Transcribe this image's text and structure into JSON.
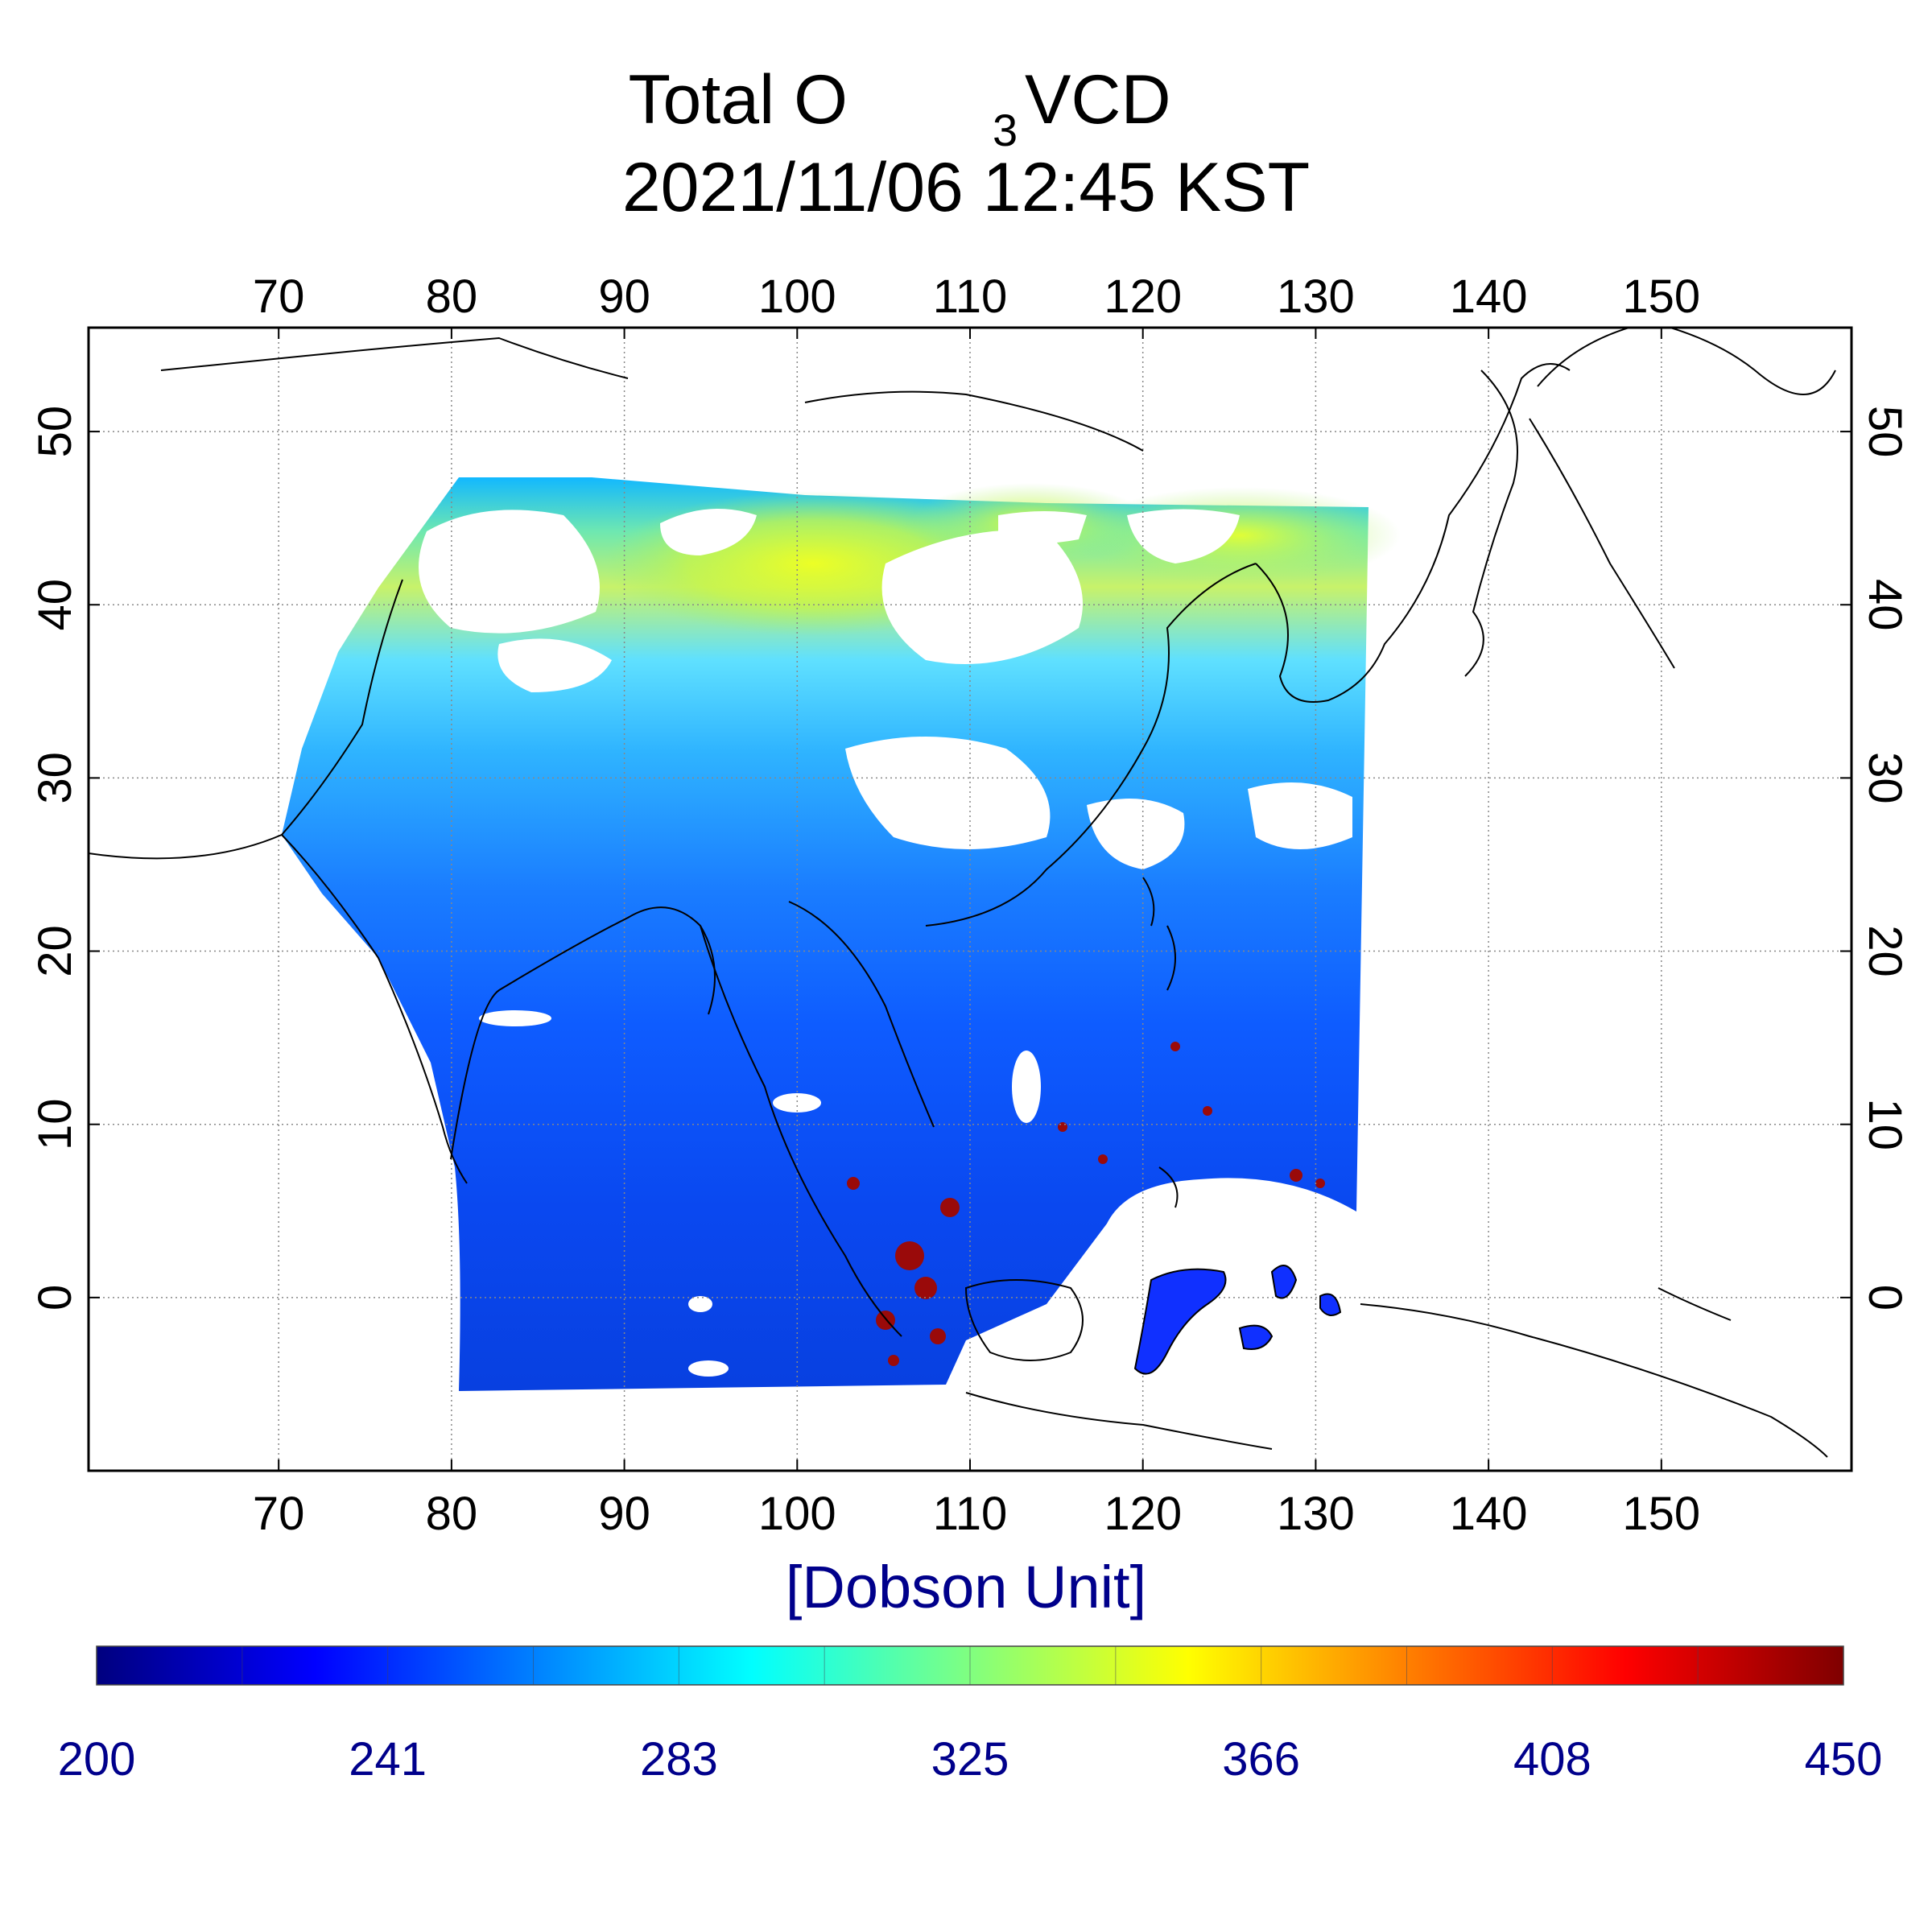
{
  "title": {
    "line1_prefix": "Total O",
    "line1_subscript": "3",
    "line1_suffix": " VCD",
    "line2": "2021/11/06 12:45 KST"
  },
  "map": {
    "lon_range": [
      59,
      161
    ],
    "lat_range": [
      -10,
      56
    ],
    "lon_ticks": [
      "70",
      "80",
      "90",
      "100",
      "110",
      "120",
      "130",
      "140",
      "150"
    ],
    "lat_ticks": [
      "50",
      "40",
      "30",
      "20",
      "10",
      "0"
    ],
    "grid": "dotted",
    "coastlines": true
  },
  "colorbar": {
    "unit_label": "[Dobson Unit]",
    "range": [
      200,
      450
    ],
    "tick_labels": [
      "200",
      "241",
      "283",
      "325",
      "366",
      "408",
      "450"
    ],
    "colors": [
      "#00007f",
      "#0000ff",
      "#0080ff",
      "#00ffff",
      "#80ff80",
      "#ffff00",
      "#ff8000",
      "#ff0000",
      "#7f0000"
    ]
  },
  "colors": {
    "axis": "#000000",
    "label_blue": "#00008b",
    "cloud_mask": "#ffffff"
  }
}
